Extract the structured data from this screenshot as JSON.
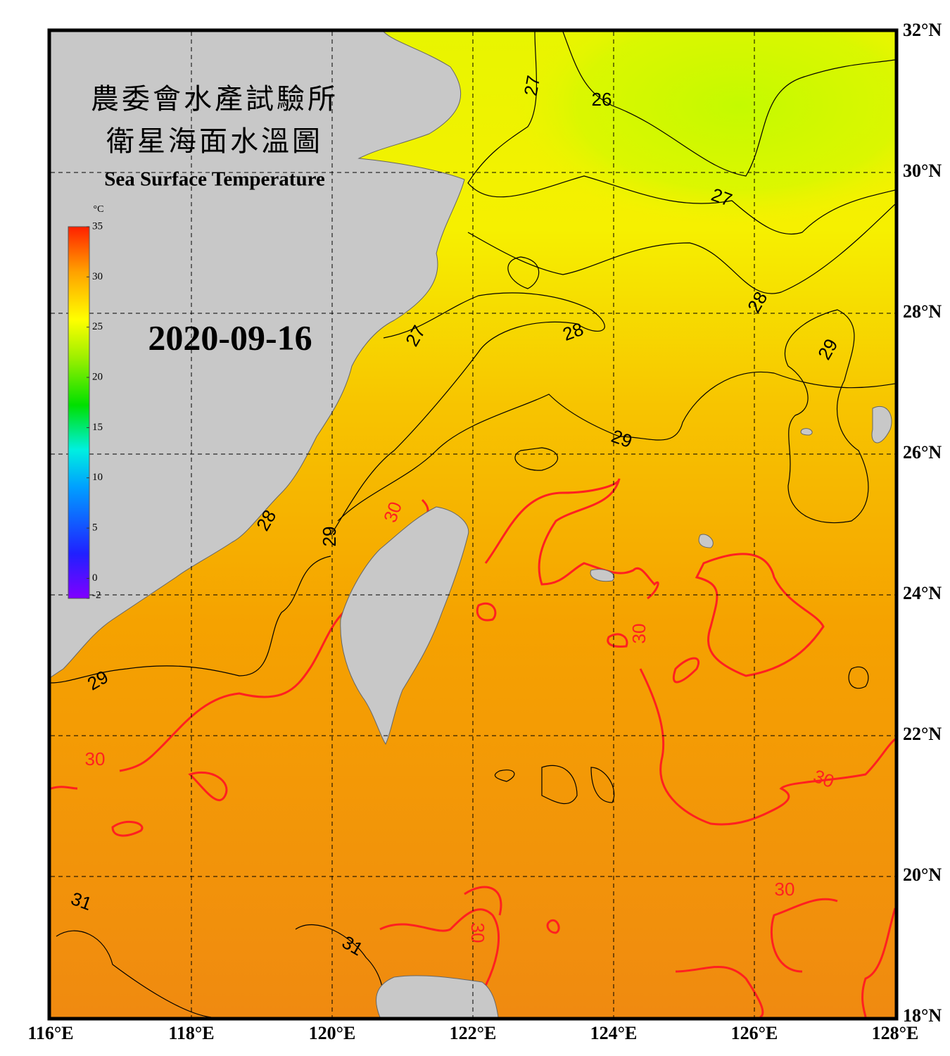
{
  "header": {
    "title_zh": "農委會水產試驗所",
    "subtitle_zh": "衛星海面水溫圖",
    "title_en": "Sea Surface Temperature"
  },
  "date": "2020-09-16",
  "colorbar": {
    "unit": "°C",
    "range": [
      -2,
      35
    ],
    "ticks": [
      35,
      30,
      25,
      20,
      15,
      10,
      5,
      0,
      -2
    ]
  },
  "axes": {
    "xlim": [
      116,
      128
    ],
    "ylim": [
      18,
      32
    ],
    "xticks": [
      {
        "value": 116,
        "label": "116°E"
      },
      {
        "value": 118,
        "label": "118°E"
      },
      {
        "value": 120,
        "label": "120°E"
      },
      {
        "value": 122,
        "label": "122°E"
      },
      {
        "value": 124,
        "label": "124°E"
      },
      {
        "value": 126,
        "label": "126°E"
      },
      {
        "value": 128,
        "label": "128°E"
      }
    ],
    "yticks": [
      {
        "value": 32,
        "label": "32°N"
      },
      {
        "value": 30,
        "label": "30°N"
      },
      {
        "value": 28,
        "label": "28°N"
      },
      {
        "value": 26,
        "label": "26°N"
      },
      {
        "value": 24,
        "label": "24°N"
      },
      {
        "value": 22,
        "label": "22°N"
      },
      {
        "value": 20,
        "label": "20°N"
      },
      {
        "value": 18,
        "label": "18°N"
      }
    ]
  },
  "contour_labels": [
    27,
    26,
    27,
    28,
    27,
    28,
    29,
    29,
    28,
    29,
    29,
    30,
    30,
    30,
    30,
    30,
    31,
    31,
    30
  ]
}
